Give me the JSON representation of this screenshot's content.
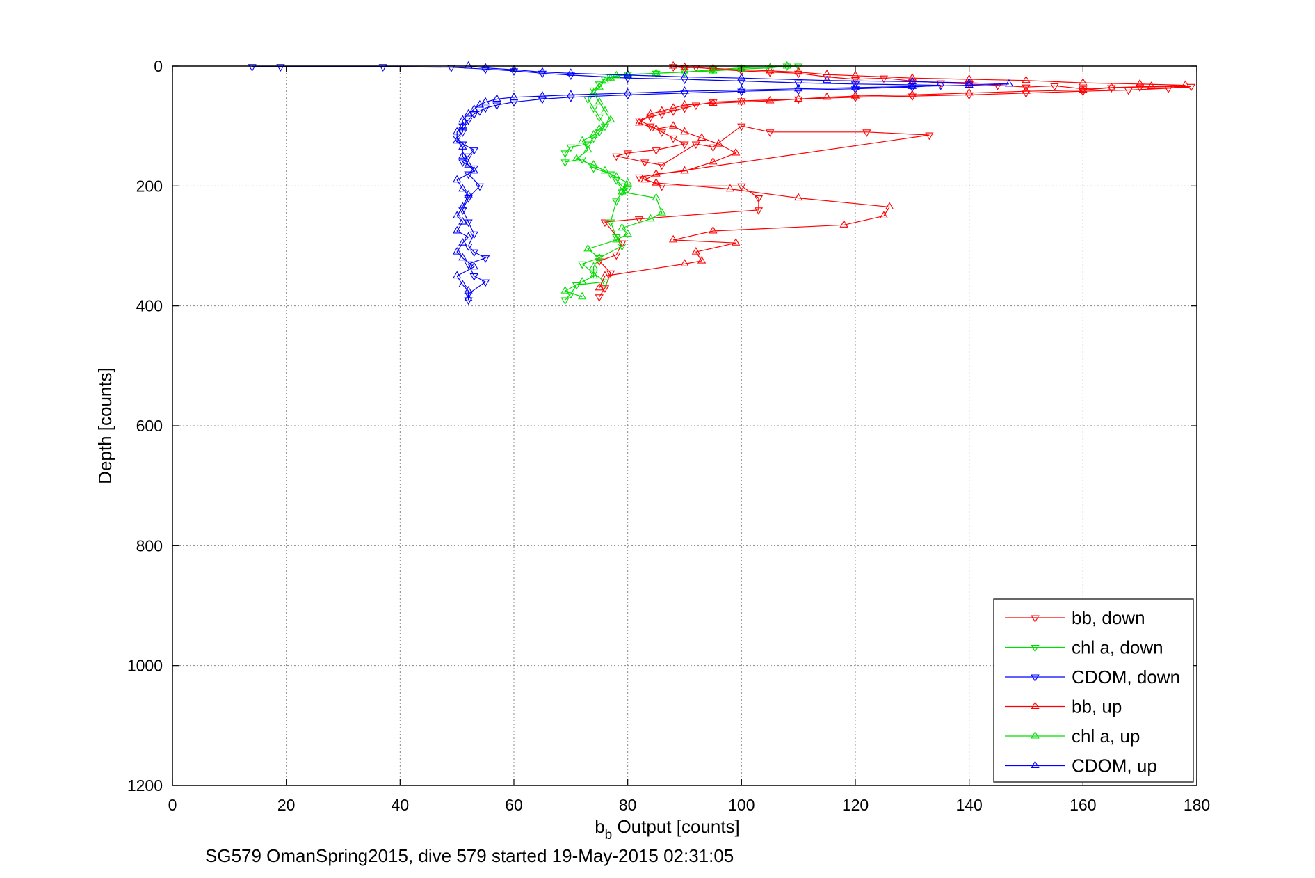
{
  "chart_data": {
    "type": "scatter",
    "title": "",
    "xlabel_main": "b",
    "xlabel_sub": "b",
    "xlabel_rest": " Output [counts]",
    "ylabel": "Depth [counts]",
    "footer": "SG579 OmanSpring2015, dive 579 started 19-May-2015 02:31:05",
    "xlim": [
      0,
      180
    ],
    "ylim": [
      0,
      1200
    ],
    "y_reversed": true,
    "grid": true,
    "legend_position": "bottom-right",
    "x_ticks": [
      "0",
      "20",
      "40",
      "60",
      "80",
      "100",
      "120",
      "140",
      "160",
      "180"
    ],
    "y_ticks": [
      "0",
      "200",
      "400",
      "600",
      "800",
      "1000",
      "1200"
    ],
    "legend": [
      "bb, down",
      "chl a, down",
      "CDOM, down",
      "bb, up",
      "chl a, up",
      "CDOM, up"
    ],
    "colors": {
      "bb": "#ff0000",
      "chl": "#00dd00",
      "cdom": "#0000ff",
      "grid": "#888888",
      "axis": "#000000"
    },
    "series": [
      {
        "name": "bb, down",
        "color": "#ff0000",
        "marker": "triangle-down",
        "points": [
          [
            88,
            1
          ],
          [
            90,
            3
          ],
          [
            92,
            2
          ],
          [
            95,
            5
          ],
          [
            100,
            8
          ],
          [
            105,
            10
          ],
          [
            110,
            12
          ],
          [
            115,
            18
          ],
          [
            120,
            22
          ],
          [
            125,
            20
          ],
          [
            130,
            25
          ],
          [
            135,
            28
          ],
          [
            140,
            30
          ],
          [
            145,
            32
          ],
          [
            150,
            35
          ],
          [
            155,
            33
          ],
          [
            160,
            38
          ],
          [
            165,
            36
          ],
          [
            170,
            35
          ],
          [
            179,
            34
          ],
          [
            175,
            37
          ],
          [
            168,
            40
          ],
          [
            160,
            42
          ],
          [
            150,
            45
          ],
          [
            140,
            48
          ],
          [
            130,
            50
          ],
          [
            120,
            52
          ],
          [
            110,
            55
          ],
          [
            100,
            58
          ],
          [
            95,
            60
          ],
          [
            92,
            65
          ],
          [
            90,
            70
          ],
          [
            88,
            75
          ],
          [
            86,
            80
          ],
          [
            84,
            85
          ],
          [
            82,
            90
          ],
          [
            84,
            100
          ],
          [
            86,
            110
          ],
          [
            88,
            120
          ],
          [
            90,
            130
          ],
          [
            85,
            140
          ],
          [
            80,
            145
          ],
          [
            78,
            150
          ],
          [
            83,
            160
          ],
          [
            86,
            165
          ],
          [
            92,
            130
          ],
          [
            95,
            135
          ],
          [
            100,
            100
          ],
          [
            105,
            110
          ],
          [
            122,
            110
          ],
          [
            133,
            115
          ],
          [
            82,
            185
          ],
          [
            86,
            200
          ],
          [
            100,
            200
          ],
          [
            103,
            220
          ],
          [
            103,
            240
          ],
          [
            82,
            255
          ],
          [
            76,
            260
          ],
          [
            79,
            295
          ],
          [
            78,
            315
          ],
          [
            75,
            325
          ],
          [
            77,
            345
          ],
          [
            76,
            370
          ],
          [
            75,
            385
          ]
        ]
      },
      {
        "name": "chl a, down",
        "color": "#00dd00",
        "marker": "triangle-down",
        "points": [
          [
            108,
            0
          ],
          [
            110,
            0
          ],
          [
            100,
            3
          ],
          [
            95,
            6
          ],
          [
            90,
            10
          ],
          [
            85,
            12
          ],
          [
            80,
            14
          ],
          [
            77,
            18
          ],
          [
            76,
            22
          ],
          [
            75,
            30
          ],
          [
            74,
            40
          ],
          [
            73,
            55
          ],
          [
            74,
            70
          ],
          [
            75,
            85
          ],
          [
            76,
            100
          ],
          [
            75,
            110
          ],
          [
            74,
            120
          ],
          [
            73,
            130
          ],
          [
            70,
            135
          ],
          [
            69,
            145
          ],
          [
            69,
            160
          ],
          [
            72,
            155
          ],
          [
            74,
            170
          ],
          [
            77,
            180
          ],
          [
            78,
            190
          ],
          [
            79,
            200
          ],
          [
            80,
            205
          ],
          [
            79,
            210
          ],
          [
            78,
            225
          ],
          [
            77,
            260
          ],
          [
            78,
            285
          ],
          [
            79,
            300
          ],
          [
            75,
            320
          ],
          [
            72,
            330
          ],
          [
            74,
            345
          ],
          [
            76,
            360
          ],
          [
            71,
            365
          ],
          [
            70,
            380
          ],
          [
            69,
            390
          ]
        ]
      },
      {
        "name": "CDOM, down",
        "color": "#0000ff",
        "marker": "triangle-down",
        "points": [
          [
            14,
            1
          ],
          [
            19,
            1
          ],
          [
            37,
            1
          ],
          [
            49,
            2
          ],
          [
            55,
            5
          ],
          [
            60,
            8
          ],
          [
            65,
            12
          ],
          [
            70,
            15
          ],
          [
            80,
            20
          ],
          [
            90,
            22
          ],
          [
            100,
            25
          ],
          [
            110,
            28
          ],
          [
            120,
            30
          ],
          [
            135,
            32
          ],
          [
            130,
            35
          ],
          [
            120,
            38
          ],
          [
            110,
            40
          ],
          [
            100,
            42
          ],
          [
            90,
            45
          ],
          [
            80,
            48
          ],
          [
            70,
            52
          ],
          [
            65,
            55
          ],
          [
            60,
            60
          ],
          [
            57,
            65
          ],
          [
            55,
            70
          ],
          [
            54,
            75
          ],
          [
            53,
            80
          ],
          [
            52,
            90
          ],
          [
            51,
            100
          ],
          [
            51,
            110
          ],
          [
            50,
            120
          ],
          [
            51,
            130
          ],
          [
            53,
            140
          ],
          [
            52,
            150
          ],
          [
            51,
            160
          ],
          [
            53,
            170
          ],
          [
            52,
            180
          ],
          [
            54,
            200
          ],
          [
            52,
            220
          ],
          [
            51,
            240
          ],
          [
            52,
            260
          ],
          [
            53,
            280
          ],
          [
            52,
            300
          ],
          [
            53,
            310
          ],
          [
            55,
            320
          ],
          [
            52,
            330
          ],
          [
            53,
            350
          ],
          [
            55,
            360
          ],
          [
            52,
            380
          ],
          [
            52,
            390
          ]
        ]
      },
      {
        "name": "bb, up",
        "color": "#ff0000",
        "marker": "triangle-up",
        "points": [
          [
            88,
            0
          ],
          [
            90,
            2
          ],
          [
            95,
            4
          ],
          [
            100,
            6
          ],
          [
            105,
            8
          ],
          [
            110,
            10
          ],
          [
            115,
            14
          ],
          [
            120,
            16
          ],
          [
            130,
            20
          ],
          [
            140,
            22
          ],
          [
            150,
            24
          ],
          [
            160,
            28
          ],
          [
            170,
            30
          ],
          [
            178,
            32
          ],
          [
            172,
            34
          ],
          [
            165,
            36
          ],
          [
            160,
            40
          ],
          [
            150,
            42
          ],
          [
            140,
            45
          ],
          [
            130,
            48
          ],
          [
            120,
            50
          ],
          [
            115,
            52
          ],
          [
            110,
            55
          ],
          [
            105,
            58
          ],
          [
            100,
            60
          ],
          [
            95,
            62
          ],
          [
            90,
            65
          ],
          [
            88,
            70
          ],
          [
            86,
            75
          ],
          [
            84,
            80
          ],
          [
            82,
            95
          ],
          [
            85,
            105
          ],
          [
            88,
            100
          ],
          [
            90,
            110
          ],
          [
            93,
            120
          ],
          [
            96,
            130
          ],
          [
            99,
            145
          ],
          [
            95,
            160
          ],
          [
            90,
            175
          ],
          [
            85,
            180
          ],
          [
            83,
            190
          ],
          [
            85,
            195
          ],
          [
            98,
            205
          ],
          [
            110,
            220
          ],
          [
            126,
            235
          ],
          [
            125,
            250
          ],
          [
            118,
            265
          ],
          [
            95,
            275
          ],
          [
            88,
            290
          ],
          [
            99,
            295
          ],
          [
            92,
            310
          ],
          [
            93,
            325
          ],
          [
            90,
            330
          ],
          [
            76,
            350
          ],
          [
            75,
            370
          ]
        ]
      },
      {
        "name": "chl a, up",
        "color": "#00dd00",
        "marker": "triangle-up",
        "points": [
          [
            108,
            0
          ],
          [
            105,
            3
          ],
          [
            100,
            5
          ],
          [
            95,
            8
          ],
          [
            90,
            10
          ],
          [
            85,
            12
          ],
          [
            80,
            14
          ],
          [
            78,
            16
          ],
          [
            77,
            20
          ],
          [
            76,
            25
          ],
          [
            75,
            35
          ],
          [
            74,
            45
          ],
          [
            75,
            60
          ],
          [
            76,
            75
          ],
          [
            77,
            90
          ],
          [
            75,
            105
          ],
          [
            74,
            115
          ],
          [
            72,
            125
          ],
          [
            73,
            140
          ],
          [
            71,
            155
          ],
          [
            74,
            165
          ],
          [
            76,
            175
          ],
          [
            78,
            185
          ],
          [
            80,
            195
          ],
          [
            79,
            210
          ],
          [
            85,
            220
          ],
          [
            86,
            245
          ],
          [
            84,
            255
          ],
          [
            79,
            270
          ],
          [
            80,
            280
          ],
          [
            78,
            290
          ],
          [
            73,
            305
          ],
          [
            75,
            320
          ],
          [
            74,
            335
          ],
          [
            74,
            350
          ],
          [
            72,
            360
          ],
          [
            69,
            375
          ],
          [
            72,
            385
          ]
        ]
      },
      {
        "name": "CDOM, up",
        "color": "#0000ff",
        "marker": "triangle-up",
        "points": [
          [
            52,
            0
          ],
          [
            55,
            3
          ],
          [
            60,
            6
          ],
          [
            65,
            10
          ],
          [
            70,
            12
          ],
          [
            80,
            15
          ],
          [
            90,
            18
          ],
          [
            100,
            20
          ],
          [
            115,
            24
          ],
          [
            130,
            26
          ],
          [
            140,
            28
          ],
          [
            147,
            30
          ],
          [
            140,
            32
          ],
          [
            130,
            34
          ],
          [
            120,
            36
          ],
          [
            110,
            38
          ],
          [
            100,
            40
          ],
          [
            90,
            42
          ],
          [
            80,
            45
          ],
          [
            70,
            48
          ],
          [
            65,
            50
          ],
          [
            60,
            52
          ],
          [
            57,
            55
          ],
          [
            55,
            60
          ],
          [
            54,
            65
          ],
          [
            53,
            72
          ],
          [
            52,
            80
          ],
          [
            51,
            90
          ],
          [
            51,
            100
          ],
          [
            50,
            110
          ],
          [
            50,
            125
          ],
          [
            51,
            135
          ],
          [
            51,
            150
          ],
          [
            52,
            165
          ],
          [
            53,
            175
          ],
          [
            50,
            190
          ],
          [
            51,
            205
          ],
          [
            52,
            215
          ],
          [
            51,
            235
          ],
          [
            50,
            250
          ],
          [
            51,
            260
          ],
          [
            50,
            275
          ],
          [
            52,
            285
          ],
          [
            51,
            295
          ],
          [
            50,
            310
          ],
          [
            51,
            320
          ],
          [
            53,
            335
          ],
          [
            50,
            350
          ],
          [
            51,
            365
          ],
          [
            52,
            375
          ],
          [
            52,
            388
          ]
        ]
      }
    ]
  }
}
